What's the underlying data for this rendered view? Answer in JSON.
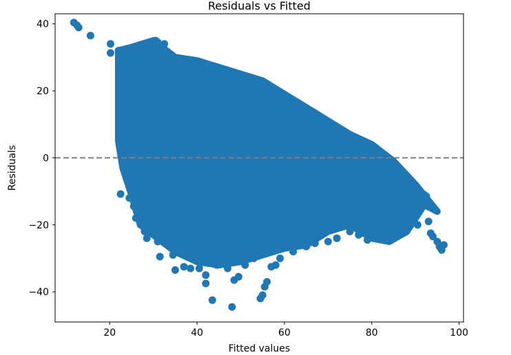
{
  "chart_data": {
    "type": "scatter",
    "title": "Residuals vs Fitted",
    "xlabel": "Fitted values",
    "ylabel": "Residuals",
    "xlim": [
      7.5,
      101
    ],
    "ylim": [
      -49,
      43
    ],
    "xticks": [
      20,
      40,
      60,
      80,
      100
    ],
    "yticks": [
      40,
      20,
      0,
      -20,
      -40
    ],
    "xtick_labels": [
      "20",
      "40",
      "60",
      "80",
      "100"
    ],
    "ytick_labels": [
      "40",
      "20",
      "0",
      "−20",
      "−40"
    ],
    "grid": false,
    "reference_line": {
      "y": 0,
      "style": "dashed",
      "color": "#808080"
    },
    "marker_color": "#1f77b4",
    "dense_region": {
      "description_free": true,
      "upper_boundary": [
        [
          22,
          32
        ],
        [
          25,
          33
        ],
        [
          30,
          35
        ],
        [
          35,
          30
        ],
        [
          40,
          29
        ],
        [
          45,
          27
        ],
        [
          50,
          25
        ],
        [
          55,
          23
        ],
        [
          60,
          19
        ],
        [
          65,
          15
        ],
        [
          70,
          11
        ],
        [
          75,
          7
        ],
        [
          80,
          4
        ],
        [
          85,
          -1
        ],
        [
          90,
          -8
        ],
        [
          95,
          -16
        ]
      ],
      "lower_boundary": [
        [
          95,
          -16
        ],
        [
          92,
          -14
        ],
        [
          88,
          -22
        ],
        [
          84,
          -25
        ],
        [
          80,
          -24
        ],
        [
          75,
          -20
        ],
        [
          70,
          -22
        ],
        [
          65,
          -26
        ],
        [
          60,
          -27
        ],
        [
          55,
          -29
        ],
        [
          50,
          -31
        ],
        [
          45,
          -32
        ],
        [
          40,
          -31
        ],
        [
          35,
          -28
        ],
        [
          30,
          -23
        ],
        [
          27,
          -20
        ],
        [
          25,
          -11
        ],
        [
          23,
          -3
        ],
        [
          22,
          5
        ]
      ]
    },
    "points": [
      [
        11.8,
        40.4
      ],
      [
        12.5,
        39.6
      ],
      [
        12.9,
        38.9
      ],
      [
        15.6,
        36.5
      ],
      [
        20.2,
        34.0
      ],
      [
        20.2,
        31.3
      ],
      [
        22.0,
        32.0
      ],
      [
        23.5,
        30.5
      ],
      [
        24.0,
        28.0
      ],
      [
        22.5,
        -10.8
      ],
      [
        24.5,
        -12.0
      ],
      [
        25.5,
        -14.5
      ],
      [
        26.0,
        -18.0
      ],
      [
        28.0,
        -22.0
      ],
      [
        28.5,
        -24.0
      ],
      [
        31.0,
        -25.0
      ],
      [
        31.5,
        -29.5
      ],
      [
        34.5,
        -29.0
      ],
      [
        35.0,
        -33.5
      ],
      [
        37.0,
        -32.5
      ],
      [
        38.5,
        -33.0
      ],
      [
        40.5,
        -33.0
      ],
      [
        42.0,
        -35.0
      ],
      [
        42.0,
        -37.5
      ],
      [
        43.5,
        -42.5
      ],
      [
        44.5,
        -32.0
      ],
      [
        46.0,
        -30.5
      ],
      [
        47.0,
        -33.0
      ],
      [
        48.5,
        -36.5
      ],
      [
        48.0,
        -44.5
      ],
      [
        49.5,
        -35.5
      ],
      [
        51.0,
        -32.0
      ],
      [
        53.0,
        -30.0
      ],
      [
        54.5,
        -42.0
      ],
      [
        55.0,
        -41.0
      ],
      [
        55.5,
        -38.5
      ],
      [
        56.0,
        -37.0
      ],
      [
        57.0,
        -32.5
      ],
      [
        59.0,
        -30.0
      ],
      [
        58.0,
        -32.0
      ],
      [
        62.0,
        -28.0
      ],
      [
        65.0,
        -26.5
      ],
      [
        67.0,
        -25.5
      ],
      [
        70.0,
        -25.0
      ],
      [
        72.0,
        -24.0
      ],
      [
        75.0,
        -22.0
      ],
      [
        77.0,
        -23.0
      ],
      [
        79.0,
        -24.5
      ],
      [
        81.0,
        -23.0
      ],
      [
        82.5,
        -19.0
      ],
      [
        83.0,
        -21.0
      ],
      [
        84.0,
        -18.0
      ],
      [
        86.0,
        -15.0
      ],
      [
        87.0,
        -13.0
      ],
      [
        88.5,
        -15.0
      ],
      [
        89.0,
        -17.0
      ],
      [
        90.0,
        -15.5
      ],
      [
        91.0,
        -14.0
      ],
      [
        92.0,
        -11.0
      ],
      [
        92.5,
        -11.5
      ],
      [
        93.0,
        -19.0
      ],
      [
        93.5,
        -22.5
      ],
      [
        94.0,
        -23.5
      ],
      [
        95.0,
        -25.0
      ],
      [
        95.5,
        -26.5
      ],
      [
        96.0,
        -27.5
      ],
      [
        96.5,
        -26.0
      ],
      [
        90.5,
        -20.0
      ],
      [
        86.0,
        -9.0
      ],
      [
        84.0,
        -5.0
      ],
      [
        83.0,
        -2.0
      ],
      [
        81.0,
        2.0
      ],
      [
        30.5,
        35.0
      ],
      [
        31.0,
        34.5
      ],
      [
        32.5,
        34.0
      ],
      [
        28.0,
        33.0
      ],
      [
        26.5,
        33.0
      ]
    ]
  }
}
